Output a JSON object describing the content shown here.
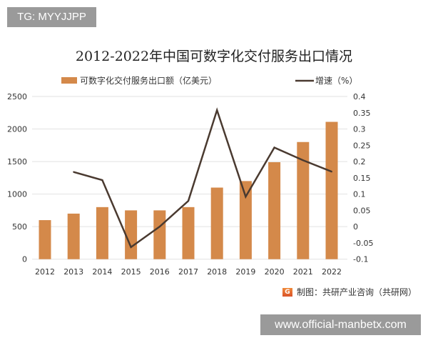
{
  "tag": "TG: MYYJJPP",
  "chart_data": {
    "type": "bar+line",
    "title": "2012-2022年中国可数字化交付服务出口情况",
    "categories": [
      "2012",
      "2013",
      "2014",
      "2015",
      "2016",
      "2017",
      "2018",
      "2019",
      "2020",
      "2021",
      "2022"
    ],
    "series": [
      {
        "name": "可数字化交付服务出口额（亿美元）",
        "type": "bar",
        "axis": "left",
        "color": "#d4894a",
        "values": [
          600,
          700,
          800,
          750,
          750,
          800,
          1100,
          1200,
          1490,
          1800,
          2110
        ]
      },
      {
        "name": "增速（%）",
        "type": "line",
        "axis": "right",
        "color": "#4a3a30",
        "values": [
          null,
          0.168,
          0.143,
          -0.063,
          0.0,
          0.079,
          0.358,
          0.092,
          0.243,
          0.204,
          0.169
        ]
      }
    ],
    "left_axis": {
      "ylim": [
        0,
        2500
      ],
      "ticks": [
        "0",
        "500",
        "1000",
        "1500",
        "2000",
        "2500"
      ]
    },
    "right_axis": {
      "ylim": [
        -0.1,
        0.4
      ],
      "ticks": [
        "-0.1",
        "-0.05",
        "0",
        "0.05",
        "0.1",
        "0.15",
        "0.2",
        "0.25",
        "0.3",
        "0.35",
        "0.4"
      ]
    },
    "grid": true,
    "legend": "top"
  },
  "source": "制图：共研产业咨询（共研网）",
  "source_icon": "G",
  "site": "www.official-manbetx.com"
}
